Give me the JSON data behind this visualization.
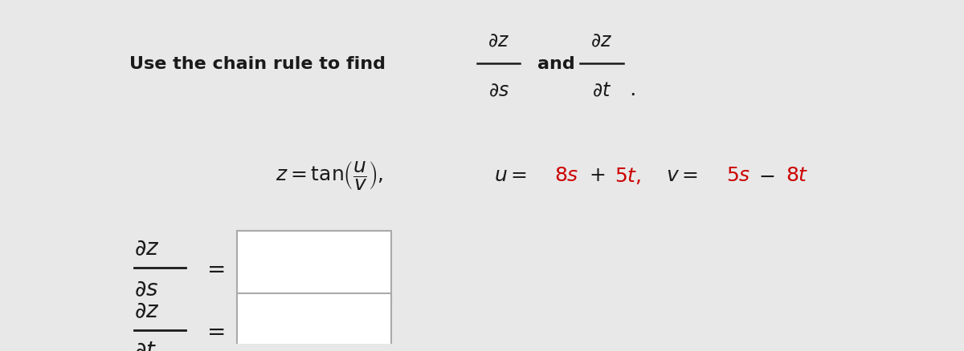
{
  "background_color": "#e8e8e8",
  "content_bg": "#ffffff",
  "black": "#1a1a1a",
  "red": "#cc0000",
  "box_border": "#aaaaaa",
  "figsize": [
    12.0,
    4.39
  ],
  "dpi": 100
}
